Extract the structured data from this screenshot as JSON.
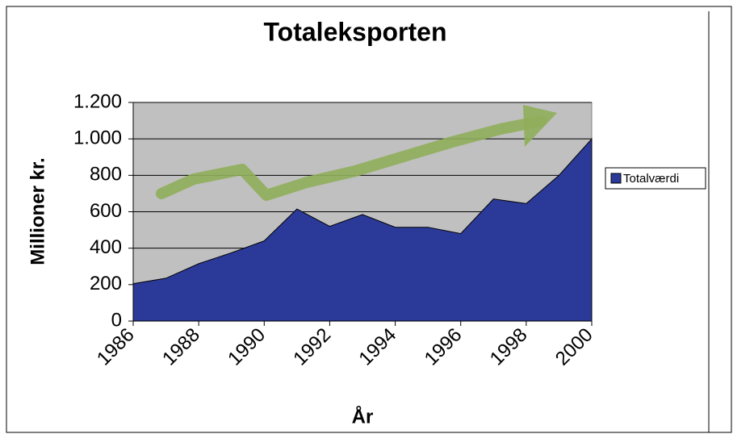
{
  "chart_data": {
    "type": "area",
    "title": "Totaleksporten",
    "xlabel": "År",
    "ylabel": "Millioner kr.",
    "x": [
      1986,
      1987,
      1988,
      1989,
      1990,
      1991,
      1992,
      1993,
      1994,
      1995,
      1996,
      1997,
      1998,
      1999,
      2000
    ],
    "series": [
      {
        "name": "Totalværdi",
        "color": "#2b3a98",
        "values": [
          205,
          235,
          315,
          375,
          440,
          615,
          520,
          585,
          515,
          515,
          480,
          670,
          645,
          800,
          1000
        ]
      }
    ],
    "xlim": [
      1986,
      2000
    ],
    "xticks": [
      1986,
      1988,
      1990,
      1992,
      1994,
      1996,
      1998,
      2000
    ],
    "ylim": [
      0,
      1200
    ],
    "yticks": [
      0,
      200,
      400,
      600,
      800,
      {
        "value": 1000,
        "label": "1.000"
      },
      {
        "value": 1200,
        "label": "1.200"
      }
    ],
    "grid": true,
    "legend": "right",
    "plot_background": "#c0c0c0"
  }
}
